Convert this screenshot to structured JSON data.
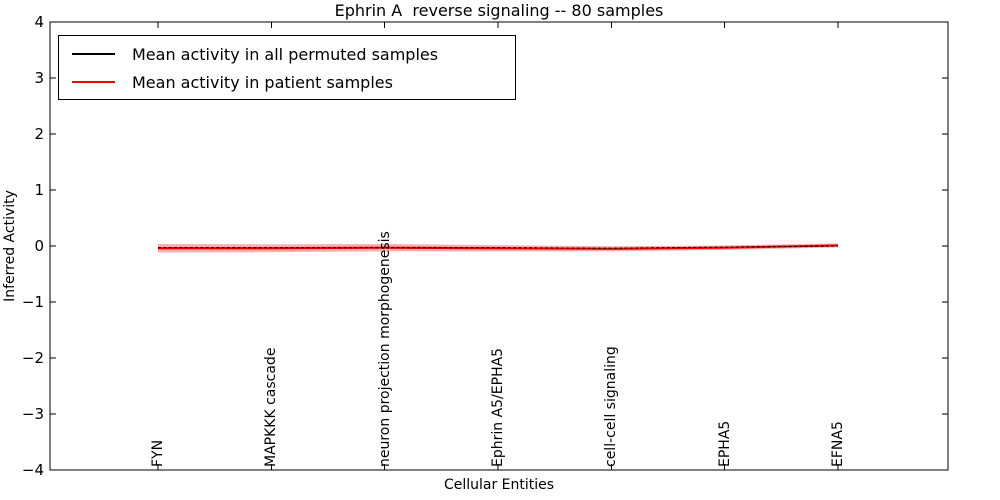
{
  "legend": {
    "entries": [
      {
        "label": "Mean activity in all permuted samples",
        "color": "#000000"
      },
      {
        "label": "Mean activity in patient samples",
        "color": "#ff0000"
      }
    ]
  },
  "chart_data": {
    "type": "line",
    "title": "Ephrin A  reverse signaling -- 80 samples",
    "xlabel": "Cellular Entities",
    "ylabel": "Inferred Activity",
    "categories": [
      "FYN",
      "MAPKKK cascade",
      "neuron projection morphogenesis",
      "Ephrin A5/EPHA5",
      "cell-cell signaling",
      "EPHA5",
      "EFNA5"
    ],
    "series": [
      {
        "name": "Mean activity in all permuted samples",
        "color": "#000000",
        "style": "dashed",
        "values": [
          -0.03,
          -0.03,
          -0.03,
          -0.03,
          -0.04,
          -0.02,
          0.0
        ]
      },
      {
        "name": "Mean activity in patient samples",
        "color": "#ff0000",
        "style": "solid",
        "values": [
          -0.04,
          -0.04,
          -0.03,
          -0.04,
          -0.05,
          -0.03,
          0.01
        ]
      }
    ],
    "band": {
      "series": "Mean activity in patient samples",
      "color": "#ff0000",
      "opacity": 0.32,
      "half_width": [
        0.075,
        0.07,
        0.065,
        0.055,
        0.045,
        0.04,
        0.035
      ]
    },
    "ylim": [
      -4,
      4
    ],
    "yticks": [
      4,
      3,
      2,
      1,
      0,
      -1,
      -2,
      -3,
      -4
    ],
    "legend_position": "upper left",
    "grid": false,
    "axis_color": "#000000",
    "background_color": "#ffffff"
  }
}
